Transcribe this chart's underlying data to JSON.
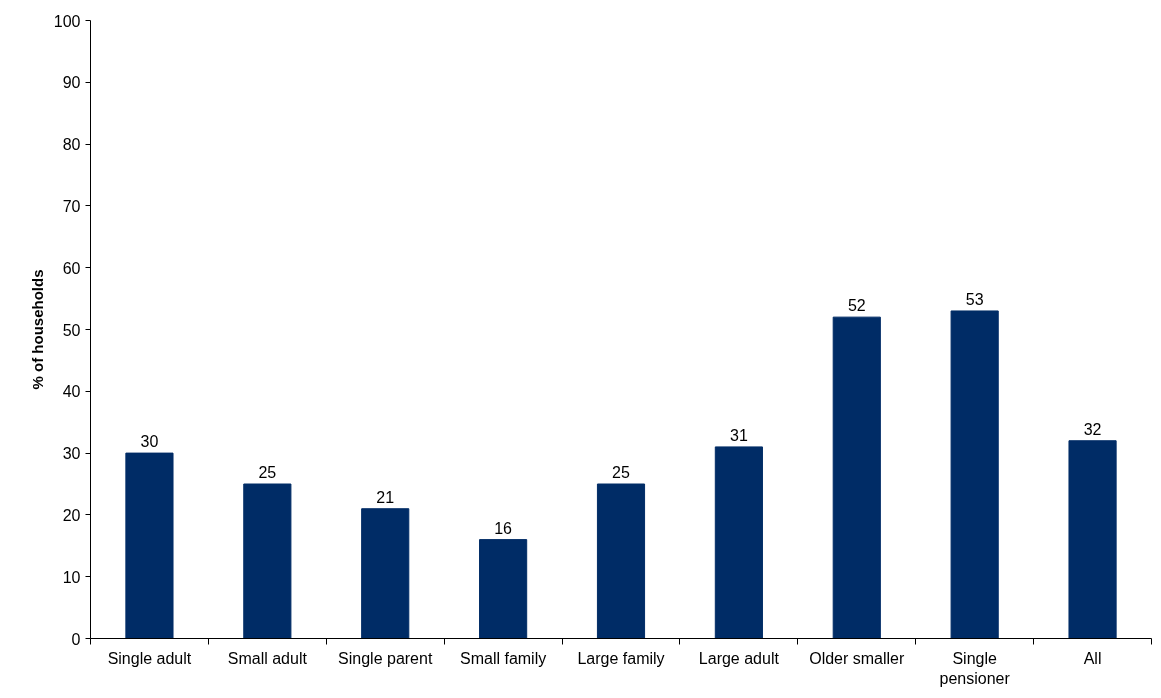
{
  "chart_data": {
    "type": "bar",
    "ylabel": "% of households",
    "categories": [
      "Single adult",
      "Small adult",
      "Single parent",
      "Small family",
      "Large family",
      "Large adult",
      "Older smaller",
      "Single pensioner",
      "All"
    ],
    "values": [
      30,
      25,
      21,
      16,
      25,
      31,
      52,
      53,
      32
    ],
    "color": "#002c66",
    "ylim": [
      0,
      100
    ],
    "yticks": [
      0,
      10,
      20,
      30,
      40,
      50,
      60,
      70,
      80,
      90,
      100
    ],
    "data_labels": true,
    "grid": false
  }
}
